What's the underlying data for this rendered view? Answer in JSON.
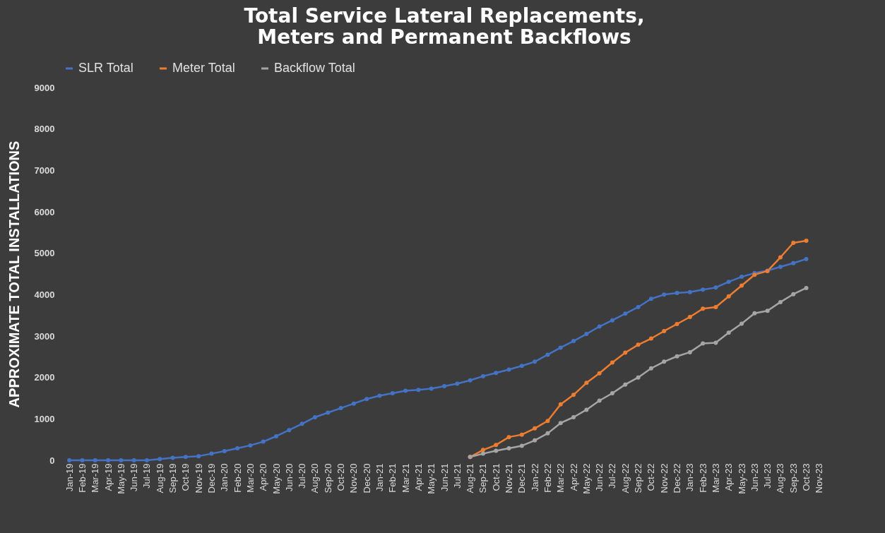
{
  "chart_data": {
    "type": "line",
    "title": "Total Service Lateral Replacements,\nMeters and Permanent Backflows",
    "ylabel": "APPROXIMATE TOTAL INSTALLATIONS",
    "categories": [
      "Jan-19",
      "Feb-19",
      "Mar-19",
      "Apr-19",
      "May-19",
      "Jun-19",
      "Jul-19",
      "Aug-19",
      "Sep-19",
      "Oct-19",
      "Nov-19",
      "Dec-19",
      "Jan-20",
      "Feb-20",
      "Mar-20",
      "Apr-20",
      "May-20",
      "Jun-20",
      "Jul-20",
      "Aug-20",
      "Sep-20",
      "Oct-20",
      "Nov-20",
      "Dec-20",
      "Jan-21",
      "Feb-21",
      "Mar-21",
      "Apr-21",
      "May-21",
      "Jun-21",
      "Jul-21",
      "Aug-21",
      "Sep-21",
      "Oct-21",
      "Nov-21",
      "Dec-21",
      "Jan-22",
      "Feb-22",
      "Mar-22",
      "Apr-22",
      "May-22",
      "Jun-22",
      "Jul-22",
      "Aug-22",
      "Sep-22",
      "Oct-22",
      "Nov-22",
      "Dec-22",
      "Jan-23",
      "Feb-23",
      "Mar-23",
      "Apr-23",
      "May-23",
      "Jun-23",
      "Jul-23",
      "Aug-23",
      "Sep-23",
      "Oct-23",
      "Nov-23"
    ],
    "series": [
      {
        "name": "SLR Total",
        "color": "#4472c4",
        "values": [
          0,
          0,
          0,
          0,
          0,
          0,
          0,
          30,
          60,
          80,
          100,
          160,
          220,
          290,
          360,
          450,
          580,
          730,
          880,
          1040,
          1150,
          1260,
          1370,
          1480,
          1560,
          1620,
          1680,
          1700,
          1730,
          1790,
          1850,
          1930,
          2030,
          2110,
          2190,
          2280,
          2380,
          2550,
          2720,
          2880,
          3050,
          3230,
          3380,
          3540,
          3700,
          3900,
          4000,
          4040,
          4060,
          4120,
          4170,
          4310,
          4430,
          4520,
          4580,
          4670,
          4760,
          4860,
          null
        ]
      },
      {
        "name": "Meter Total",
        "color": "#ed7d31",
        "values": [
          null,
          null,
          null,
          null,
          null,
          null,
          null,
          null,
          null,
          null,
          null,
          null,
          null,
          null,
          null,
          null,
          null,
          null,
          null,
          null,
          null,
          null,
          null,
          null,
          null,
          null,
          null,
          null,
          null,
          null,
          null,
          80,
          250,
          370,
          560,
          620,
          770,
          950,
          1350,
          1580,
          1870,
          2100,
          2360,
          2600,
          2790,
          2940,
          3120,
          3290,
          3460,
          3660,
          3700,
          3960,
          4220,
          4480,
          4570,
          4900,
          5250,
          5300,
          null
        ]
      },
      {
        "name": "Backflow Total",
        "color": "#a5a5a5",
        "values": [
          null,
          null,
          null,
          null,
          null,
          null,
          null,
          null,
          null,
          null,
          null,
          null,
          null,
          null,
          null,
          null,
          null,
          null,
          null,
          null,
          null,
          null,
          null,
          null,
          null,
          null,
          null,
          null,
          null,
          null,
          null,
          80,
          160,
          230,
          290,
          350,
          480,
          650,
          900,
          1040,
          1220,
          1440,
          1620,
          1830,
          2000,
          2220,
          2380,
          2510,
          2610,
          2820,
          2840,
          3080,
          3300,
          3550,
          3610,
          3820,
          4010,
          4160,
          null
        ]
      }
    ],
    "ylim": [
      0,
      9000
    ],
    "yticks": [
      0,
      1000,
      2000,
      3000,
      4000,
      5000,
      6000,
      7000,
      8000,
      9000
    ],
    "grid": false,
    "legend": "top",
    "marker": "circle"
  }
}
